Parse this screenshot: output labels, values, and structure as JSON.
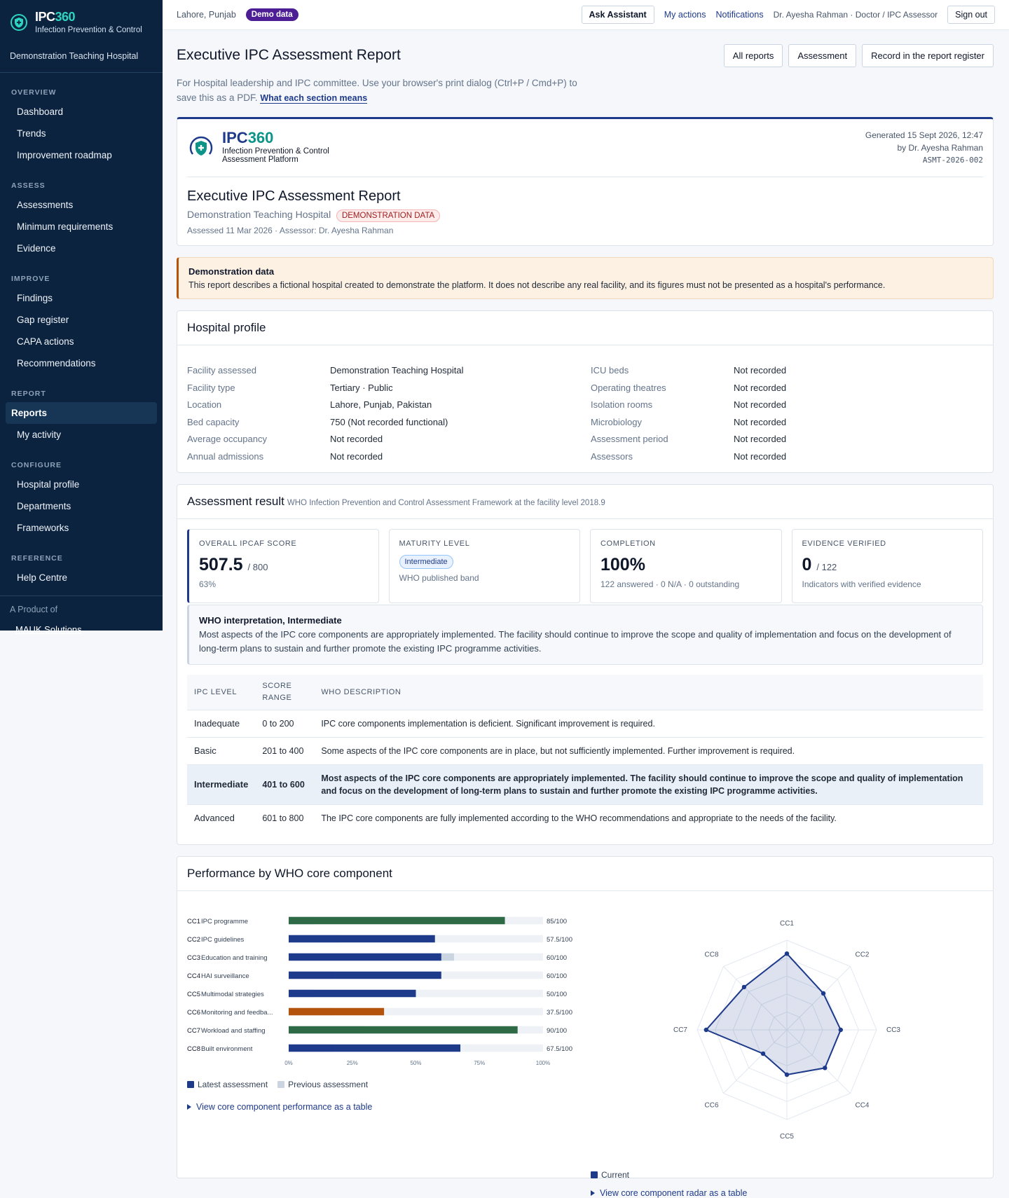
{
  "sidebar": {
    "brand": {
      "a": "IPC",
      "b": "360"
    },
    "subtitle": "Infection Prevention & Control",
    "hospital": "Demonstration Teaching Hospital",
    "sections": [
      {
        "heading": "OVERVIEW",
        "items": [
          {
            "label": "Dashboard"
          },
          {
            "label": "Trends"
          },
          {
            "label": "Improvement roadmap"
          }
        ]
      },
      {
        "heading": "ASSESS",
        "items": [
          {
            "label": "Assessments"
          },
          {
            "label": "Minimum requirements"
          },
          {
            "label": "Evidence"
          }
        ]
      },
      {
        "heading": "IMPROVE",
        "items": [
          {
            "label": "Findings"
          },
          {
            "label": "Gap register"
          },
          {
            "label": "CAPA actions"
          },
          {
            "label": "Recommendations"
          }
        ]
      },
      {
        "heading": "REPORT",
        "items": [
          {
            "label": "Reports",
            "active": true
          },
          {
            "label": "My activity"
          }
        ]
      },
      {
        "heading": "CONFIGURE",
        "items": [
          {
            "label": "Hospital profile"
          },
          {
            "label": "Departments"
          },
          {
            "label": "Frameworks"
          }
        ]
      },
      {
        "heading": "REFERENCE",
        "items": [
          {
            "label": "Help Centre"
          }
        ]
      }
    ],
    "footer": "A Product of",
    "company": "MAUK Solutions"
  },
  "topbar": {
    "location": "Lahore, Punjab",
    "badge": "Demo data",
    "assistant": "Ask Assistant",
    "links": [
      "My actions",
      "Notifications"
    ],
    "user": "Dr. Ayesha Rahman · Doctor / IPC Assessor",
    "signout": "Sign out"
  },
  "header": {
    "title": "Executive IPC Assessment Report",
    "buttons": [
      "All reports",
      "Assessment",
      "Record in the report register"
    ],
    "intro": "For Hospital leadership and IPC committee. Use your browser's print dialog (Ctrl+P / Cmd+P) to save this as a PDF.",
    "link": "What each section means"
  },
  "report": {
    "tagline": [
      "Infection Prevention & Control",
      "Assessment Platform"
    ],
    "generated": "Generated 15 Sept 2026, 12:47",
    "by": "by Dr. Ayesha Rahman",
    "id": "ASMT-2026-002",
    "title": "Executive IPC Assessment Report",
    "hospital": "Demonstration Teaching Hospital",
    "badge": "DEMONSTRATION DATA",
    "meta": "Assessed 11 Mar 2026 · Assessor: Dr. Ayesha Rahman"
  },
  "notice": {
    "title": "Demonstration data",
    "text": "This report describes a fictional hospital created to demonstrate the platform. It does not describe any real facility, and its figures must not be presented as a hospital's performance."
  },
  "profile": {
    "title": "Hospital profile",
    "rows": [
      [
        "Facility assessed",
        "Demonstration Teaching Hospital",
        "ICU beds",
        "Not recorded"
      ],
      [
        "Facility type",
        "Tertiary · Public",
        "Operating theatres",
        "Not recorded"
      ],
      [
        "Location",
        "Lahore, Punjab, Pakistan",
        "Isolation rooms",
        "Not recorded"
      ],
      [
        "Bed capacity",
        "750 (Not recorded functional)",
        "Microbiology",
        "Not recorded"
      ],
      [
        "Average occupancy",
        "Not recorded",
        "Assessment period",
        "Not recorded"
      ],
      [
        "Annual admissions",
        "Not recorded",
        "Assessors",
        "Not recorded"
      ]
    ]
  },
  "result": {
    "title": "Assessment result",
    "subtitle": "WHO Infection Prevention and Control Assessment Framework at the facility level 2018.9",
    "cards": [
      {
        "label": "OVERALL IPCAF SCORE",
        "value": "507.5",
        "suffix": "/ 800",
        "note": "63%"
      },
      {
        "label": "MATURITY LEVEL",
        "pill": "Intermediate",
        "note": "WHO published band"
      },
      {
        "label": "COMPLETION",
        "value": "100%",
        "note": "122 answered · 0 N/A · 0 outstanding"
      },
      {
        "label": "EVIDENCE VERIFIED",
        "value": "0",
        "suffix": "/ 122",
        "note": "Indicators with verified evidence"
      }
    ],
    "interpretation": {
      "title": "WHO interpretation, Intermediate",
      "text": "Most aspects of the IPC core components are appropriately implemented. The facility should continue to improve the scope and quality of implementation and focus on the development of long-term plans to sustain and further promote the existing IPC programme activities."
    },
    "levels": {
      "headers": [
        "IPC LEVEL",
        "SCORE RANGE",
        "WHO DESCRIPTION"
      ],
      "rows": [
        {
          "cells": [
            "Inadequate",
            "0 to 200",
            "IPC core components implementation is deficient. Significant improvement is required."
          ]
        },
        {
          "cells": [
            "Basic",
            "201 to 400",
            "Some aspects of the IPC core components are in place, but not sufficiently implemented. Further improvement is required."
          ]
        },
        {
          "cells": [
            "Intermediate",
            "401 to 600",
            "Most aspects of the IPC core components are appropriately implemented. The facility should continue to improve the scope and quality of implementation and focus on the development of long-term plans to sustain and further promote the existing IPC programme activities."
          ],
          "highlight": true
        },
        {
          "cells": [
            "Advanced",
            "601 to 800",
            "The IPC core components are fully implemented according to the WHO recommendations and appropriate to the needs of the facility."
          ]
        }
      ]
    }
  },
  "performance": {
    "title": "Performance by WHO core component",
    "bar_link": "View core component performance as a table",
    "radar_link": "View core component radar as a table"
  },
  "chart_data": [
    {
      "type": "bar",
      "orientation": "horizontal",
      "codes": [
        "CC1",
        "CC2",
        "CC3",
        "CC4",
        "CC5",
        "CC6",
        "CC7",
        "CC8"
      ],
      "categories": [
        "IPC programme",
        "IPC guidelines",
        "Education and training",
        "HAI surveillance",
        "Multimodal strategies",
        "Monitoring and feedba...",
        "Workload and staffing",
        "Built environment"
      ],
      "series": [
        {
          "name": "Latest assessment",
          "color": "#1e3a8a",
          "colors": [
            "#2d6a45",
            "#1e3a8a",
            "#1e3a8a",
            "#1e3a8a",
            "#1e3a8a",
            "#b4530c",
            "#2d6a45",
            "#1e3a8a"
          ],
          "values": [
            85,
            57.5,
            60,
            60,
            50,
            37.5,
            90,
            67.5
          ],
          "value_labels": [
            "85/100",
            "57.5/100",
            "60/100",
            "60/100",
            "50/100",
            "37.5/100",
            "90/100",
            "67.5/100"
          ]
        },
        {
          "name": "Previous assessment",
          "color": "#cbd5e1",
          "values": [
            10,
            20,
            65,
            17.5,
            10,
            17.5,
            30,
            17.5
          ]
        }
      ],
      "xlim": [
        0,
        100
      ],
      "xticks": [
        {
          "value": 0,
          "label": "0%"
        },
        {
          "value": 25,
          "label": "25%"
        },
        {
          "value": 50,
          "label": "50%"
        },
        {
          "value": 75,
          "label": "75%"
        },
        {
          "value": 100,
          "label": "100%"
        }
      ],
      "grid": false
    },
    {
      "type": "radar",
      "categories": [
        "CC1",
        "CC2",
        "CC3",
        "CC4",
        "CC5",
        "CC6",
        "CC7",
        "CC8"
      ],
      "series": [
        {
          "name": "Current",
          "color": "#1e3a8a",
          "values": [
            85,
            57.5,
            60,
            60,
            50,
            37.5,
            90,
            67.5
          ]
        }
      ],
      "rlim": [
        0,
        100
      ],
      "rticks": [
        20,
        40,
        60,
        80,
        100
      ],
      "grid": true
    }
  ]
}
